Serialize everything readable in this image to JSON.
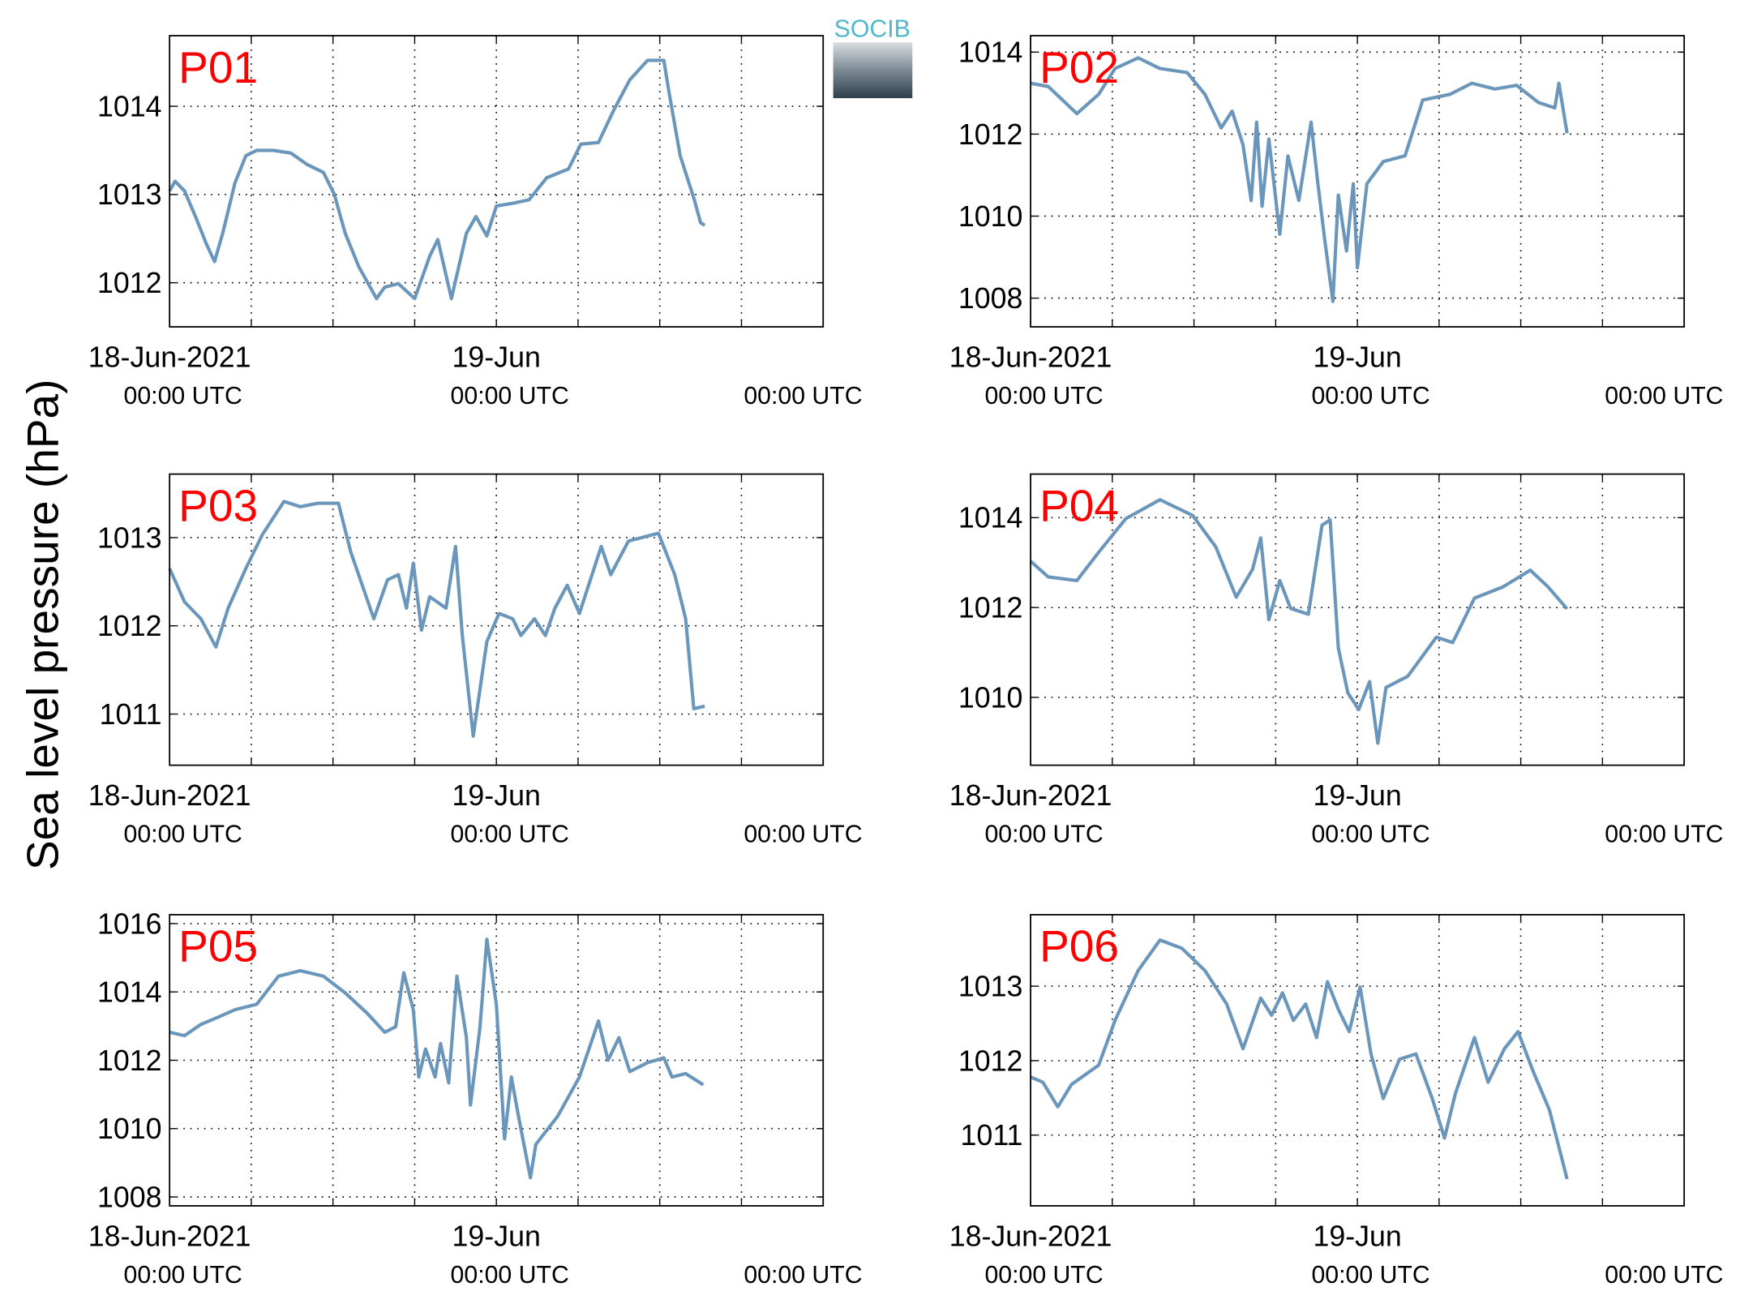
{
  "ylabel": "Sea level pressure (hPa)",
  "logo": "SOCIB",
  "chart_data": [
    {
      "type": "line",
      "title": "P01",
      "color": "#6a96bb",
      "grid": true,
      "xlim": [
        0,
        48
      ],
      "xticks": [
        {
          "value": 0,
          "label": "18-Jun-2021",
          "time": "00:00 UTC"
        },
        {
          "value": 6
        },
        {
          "value": 12
        },
        {
          "value": 18
        },
        {
          "value": 24,
          "label": "19-Jun",
          "time": "00:00 UTC"
        },
        {
          "value": 30
        },
        {
          "value": 36
        },
        {
          "value": 42
        },
        {
          "value": 48,
          "time": "00:00 UTC"
        }
      ],
      "ylim": [
        1011.5,
        1014.8
      ],
      "yticks": [
        1012,
        1013,
        1014
      ],
      "x": [
        0,
        0.4,
        1.1,
        1.9,
        2.7,
        3.3,
        3.9,
        4.8,
        5.6,
        6.4,
        7.6,
        8.9,
        10.1,
        11.3,
        12.1,
        12.9,
        13.9,
        15.2,
        15.8,
        16.8,
        18,
        19.1,
        19.7,
        20.7,
        21.8,
        22.5,
        23.3,
        24,
        25.2,
        26.4,
        27.7,
        29.3,
        30.2,
        31.5,
        32.6,
        33.8,
        35.1,
        36.3,
        36.7,
        37.5,
        38.5,
        39,
        39.3
      ],
      "values": [
        1013.04,
        1013.15,
        1013.04,
        1012.75,
        1012.44,
        1012.24,
        1012.56,
        1013.13,
        1013.44,
        1013.5,
        1013.5,
        1013.47,
        1013.34,
        1013.25,
        1013,
        1012.56,
        1012.18,
        1011.82,
        1011.95,
        1011.99,
        1011.82,
        1012.3,
        1012.49,
        1011.82,
        1012.56,
        1012.75,
        1012.53,
        1012.87,
        1012.9,
        1012.94,
        1013.19,
        1013.29,
        1013.57,
        1013.59,
        1013.95,
        1014.3,
        1014.52,
        1014.52,
        1014.14,
        1013.44,
        1012.96,
        1012.68,
        1012.65
      ]
    },
    {
      "type": "line",
      "title": "P02",
      "color": "#6a96bb",
      "grid": true,
      "xlim": [
        0,
        48
      ],
      "xticks": [
        {
          "value": 0,
          "label": "18-Jun-2021",
          "time": "00:00 UTC"
        },
        {
          "value": 6
        },
        {
          "value": 12
        },
        {
          "value": 18
        },
        {
          "value": 24,
          "label": "19-Jun",
          "time": "00:00 UTC"
        },
        {
          "value": 30
        },
        {
          "value": 36
        },
        {
          "value": 42
        },
        {
          "value": 48,
          "time": "00:00 UTC"
        }
      ],
      "ylim": [
        1007.3,
        1014.4
      ],
      "yticks": [
        1008,
        1010,
        1012,
        1014
      ],
      "x": [
        0,
        1.3,
        3.4,
        5,
        6.2,
        7.9,
        9.5,
        11.5,
        12.8,
        14,
        14.8,
        15.6,
        16.2,
        16.6,
        17,
        17.5,
        18.3,
        18.9,
        19.7,
        20.6,
        21.1,
        21.6,
        22.2,
        22.6,
        23.2,
        23.7,
        24,
        24.7,
        25.9,
        27.5,
        28.8,
        30.8,
        32.4,
        34.1,
        35.7,
        37.3,
        38.5,
        38.8,
        39.4
      ],
      "values": [
        1013.24,
        1013.16,
        1012.5,
        1012.97,
        1013.6,
        1013.86,
        1013.6,
        1013.5,
        1012.97,
        1012.15,
        1012.56,
        1011.74,
        1010.38,
        1012.29,
        1010.24,
        1011.88,
        1009.56,
        1011.47,
        1010.38,
        1012.29,
        1010.79,
        1009.43,
        1007.92,
        1010.51,
        1009.15,
        1010.79,
        1008.74,
        1010.79,
        1011.33,
        1011.47,
        1012.83,
        1012.97,
        1013.24,
        1013.1,
        1013.19,
        1012.77,
        1012.64,
        1013.24,
        1012.02
      ]
    },
    {
      "type": "line",
      "title": "P03",
      "color": "#6a96bb",
      "grid": true,
      "xlim": [
        0,
        48
      ],
      "xticks": [
        {
          "value": 0,
          "label": "18-Jun-2021",
          "time": "00:00 UTC"
        },
        {
          "value": 6
        },
        {
          "value": 12
        },
        {
          "value": 18
        },
        {
          "value": 24,
          "label": "19-Jun",
          "time": "00:00 UTC"
        },
        {
          "value": 30
        },
        {
          "value": 36
        },
        {
          "value": 42
        },
        {
          "value": 48,
          "time": "00:00 UTC"
        }
      ],
      "ylim": [
        1010.42,
        1013.72
      ],
      "yticks": [
        1011,
        1012,
        1013
      ],
      "x": [
        0,
        1.1,
        2.3,
        3.4,
        4.3,
        5.6,
        6.8,
        8.4,
        9.6,
        10.9,
        12.4,
        13.3,
        15,
        16,
        16.8,
        17.4,
        17.9,
        18.5,
        19.1,
        20.3,
        21,
        21.5,
        22.3,
        23.3,
        24.2,
        25.2,
        25.8,
        26.8,
        27.6,
        28.3,
        29.2,
        30.1,
        31.7,
        32.4,
        33.7,
        35.9,
        37.1,
        37.9,
        38.5,
        39.3
      ],
      "values": [
        1012.65,
        1012.27,
        1012.08,
        1011.76,
        1012.2,
        1012.65,
        1013.03,
        1013.41,
        1013.35,
        1013.39,
        1013.39,
        1012.84,
        1012.08,
        1012.52,
        1012.58,
        1012.2,
        1012.71,
        1011.95,
        1012.33,
        1012.2,
        1012.9,
        1011.89,
        1010.75,
        1011.82,
        1012.14,
        1012.08,
        1011.89,
        1012.08,
        1011.89,
        1012.2,
        1012.46,
        1012.14,
        1012.9,
        1012.58,
        1012.96,
        1013.05,
        1012.58,
        1012.08,
        1011.06,
        1011.09
      ]
    },
    {
      "type": "line",
      "title": "P04",
      "color": "#6a96bb",
      "grid": true,
      "xlim": [
        0,
        48
      ],
      "xticks": [
        {
          "value": 0,
          "label": "18-Jun-2021",
          "time": "00:00 UTC"
        },
        {
          "value": 6
        },
        {
          "value": 12
        },
        {
          "value": 18
        },
        {
          "value": 24,
          "label": "19-Jun",
          "time": "00:00 UTC"
        },
        {
          "value": 30
        },
        {
          "value": 36
        },
        {
          "value": 42
        },
        {
          "value": 48,
          "time": "00:00 UTC"
        }
      ],
      "ylim": [
        1008.49,
        1014.97
      ],
      "yticks": [
        1010,
        1012,
        1014
      ],
      "x": [
        0,
        1.3,
        3.4,
        5,
        7,
        9.5,
        11.9,
        13.6,
        15.1,
        16.3,
        16.9,
        17.5,
        18.3,
        19.1,
        20.4,
        21.4,
        22,
        22.6,
        23.3,
        24.1,
        24.9,
        25.5,
        26.1,
        27.7,
        29.8,
        31,
        32.6,
        34.7,
        36.7,
        38,
        39.4
      ],
      "values": [
        1013.03,
        1012.68,
        1012.6,
        1013.23,
        1013.98,
        1014.4,
        1014.05,
        1013.35,
        1012.23,
        1012.85,
        1013.55,
        1011.73,
        1012.6,
        1011.98,
        1011.85,
        1013.83,
        1013.95,
        1011.1,
        1010.1,
        1009.73,
        1010.35,
        1008.98,
        1010.22,
        1010.47,
        1011.34,
        1011.22,
        1012.21,
        1012.46,
        1012.83,
        1012.46,
        1011.97
      ]
    },
    {
      "type": "line",
      "title": "P05",
      "color": "#6a96bb",
      "grid": true,
      "xlim": [
        0,
        48
      ],
      "xticks": [
        {
          "value": 0,
          "label": "18-Jun-2021",
          "time": "00:00 UTC"
        },
        {
          "value": 6
        },
        {
          "value": 12
        },
        {
          "value": 18
        },
        {
          "value": 24,
          "label": "19-Jun",
          "time": "00:00 UTC"
        },
        {
          "value": 30
        },
        {
          "value": 36
        },
        {
          "value": 42
        },
        {
          "value": 48,
          "time": "00:00 UTC"
        }
      ],
      "ylim": [
        1007.74,
        1016.26
      ],
      "yticks": [
        1008,
        1010,
        1012,
        1014,
        1016
      ],
      "x": [
        0,
        1.1,
        2.3,
        3.5,
        4.8,
        6.4,
        8,
        9.6,
        11.3,
        12.9,
        14.5,
        15.8,
        16.6,
        17.2,
        17.9,
        18.3,
        18.8,
        19.5,
        19.9,
        20.5,
        21.1,
        21.8,
        22.1,
        22.8,
        23.3,
        24,
        24.6,
        25.1,
        25.7,
        26.5,
        26.9,
        28.5,
        30.1,
        31.5,
        32.2,
        33,
        33.8,
        35.1,
        36.3,
        36.9,
        37.9,
        39.2
      ],
      "values": [
        1012.82,
        1012.72,
        1013.05,
        1013.25,
        1013.48,
        1013.64,
        1014.46,
        1014.62,
        1014.46,
        1013.97,
        1013.38,
        1012.82,
        1012.98,
        1014.56,
        1013.48,
        1011.51,
        1012.33,
        1011.51,
        1012.49,
        1011.34,
        1014.46,
        1012.66,
        1010.69,
        1012.98,
        1015.54,
        1013.64,
        1009.7,
        1011.51,
        1010.2,
        1008.56,
        1009.54,
        1010.36,
        1011.51,
        1013.15,
        1012,
        1012.66,
        1011.67,
        1011.93,
        1012.07,
        1011.51,
        1011.61,
        1011.28
      ]
    },
    {
      "type": "line",
      "title": "P06",
      "color": "#6a96bb",
      "grid": true,
      "xlim": [
        0,
        48
      ],
      "xticks": [
        {
          "value": 0,
          "label": "18-Jun-2021",
          "time": "00:00 UTC"
        },
        {
          "value": 6
        },
        {
          "value": 12
        },
        {
          "value": 18
        },
        {
          "value": 24,
          "label": "19-Jun",
          "time": "00:00 UTC"
        },
        {
          "value": 30
        },
        {
          "value": 36
        },
        {
          "value": 42
        },
        {
          "value": 48,
          "time": "00:00 UTC"
        }
      ],
      "ylim": [
        1010.05,
        1013.96
      ],
      "yticks": [
        1011,
        1012,
        1013
      ],
      "x": [
        0,
        0.9,
        2,
        3,
        5,
        6.2,
        7.9,
        9.5,
        11.1,
        12.8,
        14.4,
        15.6,
        16.9,
        17.7,
        18.5,
        19.3,
        20.2,
        21,
        21.8,
        22.6,
        23.4,
        24.2,
        25,
        25.9,
        27.1,
        28.3,
        29.5,
        30.4,
        31.2,
        32.6,
        33.6,
        34.8,
        35.8,
        36.9,
        38.1,
        39.4
      ],
      "values": [
        1011.78,
        1011.71,
        1011.38,
        1011.68,
        1011.94,
        1012.54,
        1013.21,
        1013.62,
        1013.51,
        1013.21,
        1012.76,
        1012.16,
        1012.84,
        1012.61,
        1012.91,
        1012.54,
        1012.76,
        1012.31,
        1013.06,
        1012.69,
        1012.39,
        1012.99,
        1012.09,
        1011.49,
        1012.02,
        1012.09,
        1011.49,
        1010.96,
        1011.56,
        1012.31,
        1011.71,
        1012.16,
        1012.39,
        1011.86,
        1011.34,
        1010.41
      ]
    }
  ]
}
